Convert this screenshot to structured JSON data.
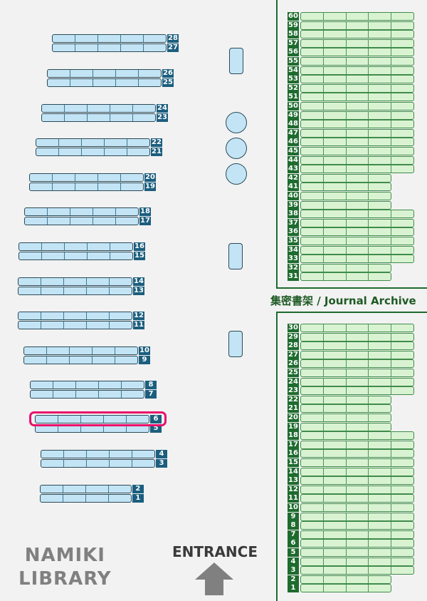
{
  "colors": {
    "stacks": "#c3e4f5",
    "stack_label": "#1b5e7e",
    "archive": "#d9f3d2",
    "archive_label": "#1e6b2e",
    "highlight": "#e8106a"
  },
  "main_stacks": [
    {
      "pair": [
        "28",
        "27"
      ],
      "cells": 5
    },
    {
      "pair": [
        "26",
        "25"
      ],
      "cells": 5
    },
    {
      "pair": [
        "24",
        "23"
      ],
      "cells": 5
    },
    {
      "pair": [
        "22",
        "21"
      ],
      "cells": 5
    },
    {
      "pair": [
        "20",
        "19"
      ],
      "cells": 5
    },
    {
      "pair": [
        "18",
        "17"
      ],
      "cells": 5
    },
    {
      "pair": [
        "16",
        "15"
      ],
      "cells": 5
    },
    {
      "pair": [
        "14",
        "13"
      ],
      "cells": 5
    },
    {
      "pair": [
        "12",
        "11"
      ],
      "cells": 5
    },
    {
      "pair": [
        "10",
        "9"
      ],
      "cells": 5
    },
    {
      "pair": [
        "8",
        "7"
      ],
      "cells": 5
    },
    {
      "pair": [
        "6",
        "5"
      ],
      "cells": 5
    },
    {
      "pair": [
        "4",
        "3"
      ],
      "cells": 5
    },
    {
      "pair": [
        "2",
        "1"
      ],
      "cells": 4
    }
  ],
  "highlighted_shelf": "6",
  "archive_upper": [
    {
      "pair": [
        "60",
        "59"
      ],
      "cells": 5
    },
    {
      "pair": [
        "58",
        "57"
      ],
      "cells": 5
    },
    {
      "pair": [
        "56",
        "55"
      ],
      "cells": 5
    },
    {
      "pair": [
        "54",
        "53"
      ],
      "cells": 5
    },
    {
      "pair": [
        "52",
        "51"
      ],
      "cells": 5
    },
    {
      "pair": [
        "50",
        "49"
      ],
      "cells": 5
    },
    {
      "pair": [
        "48",
        "47"
      ],
      "cells": 5
    },
    {
      "pair": [
        "46",
        "45"
      ],
      "cells": 5
    },
    {
      "pair": [
        "44",
        "43"
      ],
      "cells": 5
    },
    {
      "pair": [
        "42",
        "41"
      ],
      "cells": 4
    },
    {
      "pair": [
        "40",
        "39"
      ],
      "cells": 4
    },
    {
      "pair": [
        "38",
        "37"
      ],
      "cells": 5
    },
    {
      "pair": [
        "36",
        "35"
      ],
      "cells": 5
    },
    {
      "pair": [
        "34",
        "33"
      ],
      "cells": 5
    },
    {
      "pair": [
        "32",
        "31"
      ],
      "cells": 4
    }
  ],
  "archive_lower": [
    {
      "pair": [
        "30",
        "29"
      ],
      "cells": 5
    },
    {
      "pair": [
        "28",
        "27"
      ],
      "cells": 5
    },
    {
      "pair": [
        "26",
        "25"
      ],
      "cells": 5
    },
    {
      "pair": [
        "24",
        "23"
      ],
      "cells": 5
    },
    {
      "pair": [
        "22",
        "21"
      ],
      "cells": 4
    },
    {
      "pair": [
        "20",
        "19"
      ],
      "cells": 4
    },
    {
      "pair": [
        "18",
        "17"
      ],
      "cells": 5
    },
    {
      "pair": [
        "16",
        "15"
      ],
      "cells": 5
    },
    {
      "pair": [
        "14",
        "13"
      ],
      "cells": 5
    },
    {
      "pair": [
        "12",
        "11"
      ],
      "cells": 5
    },
    {
      "pair": [
        "10",
        "9"
      ],
      "cells": 5
    },
    {
      "pair": [
        "8",
        "7"
      ],
      "cells": 5
    },
    {
      "pair": [
        "6",
        "5"
      ],
      "cells": 5
    },
    {
      "pair": [
        "4",
        "3"
      ],
      "cells": 5
    },
    {
      "pair": [
        "2",
        "1"
      ],
      "cells": 4
    }
  ],
  "archive_label": "集密書架 / Journal Archive",
  "library_name_line1": "NAMIKI",
  "library_name_line2": "LIBRARY",
  "entrance_label": "ENTRANCE",
  "entrance_icon": "arrow-up-icon"
}
